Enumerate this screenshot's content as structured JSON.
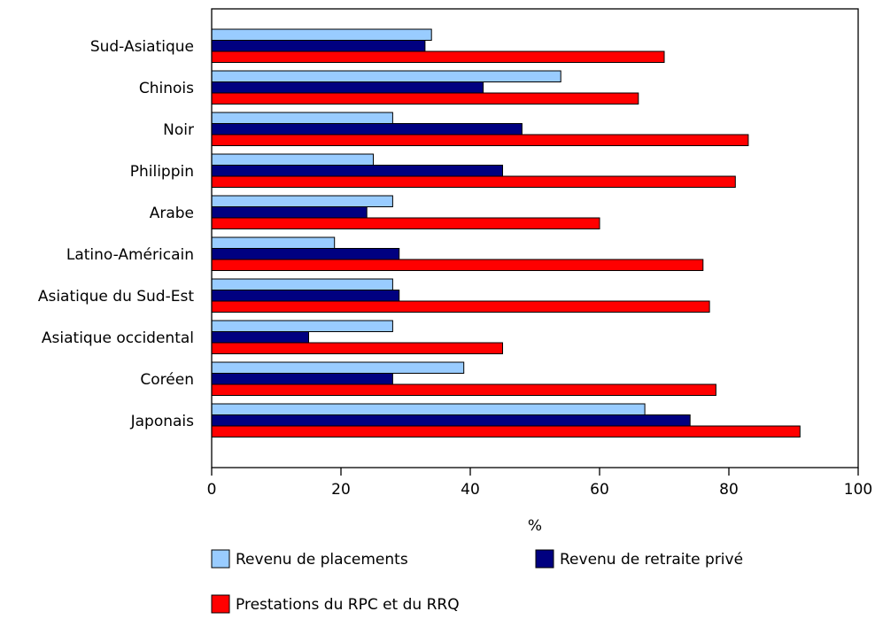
{
  "chart_data": {
    "type": "bar",
    "orientation": "horizontal",
    "title": "",
    "xlabel": "%",
    "ylabel": "",
    "xlim": [
      0,
      100
    ],
    "xticks": [
      0,
      20,
      40,
      60,
      80,
      100
    ],
    "grid": false,
    "legend_position": "bottom",
    "categories": [
      "Sud-Asiatique",
      "Chinois",
      "Noir",
      "Philippin",
      "Arabe",
      "Latino-Américain",
      "Asiatique du Sud-Est",
      "Asiatique occidental",
      "Coréen",
      "Japonais"
    ],
    "series": [
      {
        "name": "Revenu de placements",
        "color": "#99ccff",
        "values": [
          34,
          54,
          28,
          25,
          28,
          19,
          28,
          28,
          39,
          67
        ]
      },
      {
        "name": "Revenu de retraite privé",
        "color": "#000080",
        "values": [
          33,
          42,
          48,
          45,
          24,
          29,
          29,
          15,
          28,
          74
        ]
      },
      {
        "name": "Prestations du RPC et du RRQ",
        "color": "#ff0000",
        "values": [
          70,
          66,
          83,
          81,
          60,
          76,
          77,
          45,
          78,
          91
        ]
      }
    ]
  }
}
